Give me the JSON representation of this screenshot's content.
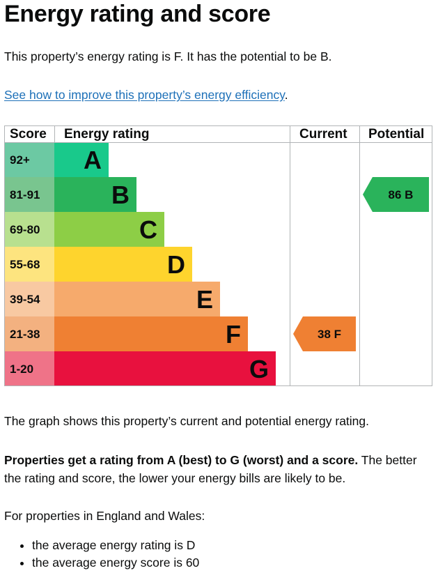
{
  "page": {
    "title": "Energy rating and score",
    "intro": "This property’s energy rating is F. It has the potential to be B.",
    "link_text": "See how to improve this property’s energy efficiency",
    "link_suffix": ".",
    "caption": "The graph shows this property’s current and potential energy rating.",
    "ratings_bold": "Properties get a rating from A (best) to G (worst) and a score.",
    "ratings_rest": " The better the rating and score, the lower your energy bills are likely to be.",
    "england_intro": "For properties in England and Wales:",
    "bullets": [
      "the average energy rating is D",
      "the average energy score is 60"
    ]
  },
  "chart_data": {
    "type": "table",
    "headers": {
      "score": "Score",
      "rating": "Energy rating",
      "current": "Current",
      "potential": "Potential"
    },
    "bands": [
      {
        "score": "92+",
        "letter": "A",
        "color": "#19c98b",
        "score_bg": "#6cc9a3"
      },
      {
        "score": "81-91",
        "letter": "B",
        "color": "#2ab35b",
        "score_bg": "#79c58f"
      },
      {
        "score": "69-80",
        "letter": "C",
        "color": "#8dce46",
        "score_bg": "#b8e08f"
      },
      {
        "score": "55-68",
        "letter": "D",
        "color": "#fed42d",
        "score_bg": "#fde47f"
      },
      {
        "score": "39-54",
        "letter": "E",
        "color": "#f6aa6c",
        "score_bg": "#f8c9a2"
      },
      {
        "score": "21-38",
        "letter": "F",
        "color": "#ef8033",
        "score_bg": "#f3b180"
      },
      {
        "score": "1-20",
        "letter": "G",
        "color": "#e8113e",
        "score_bg": "#ef7388"
      }
    ],
    "current": {
      "value": 38,
      "letter": "F",
      "label": "38 F",
      "color": "#ef8033"
    },
    "potential": {
      "value": 86,
      "letter": "B",
      "label": "86 B",
      "color": "#2ab35b"
    }
  }
}
